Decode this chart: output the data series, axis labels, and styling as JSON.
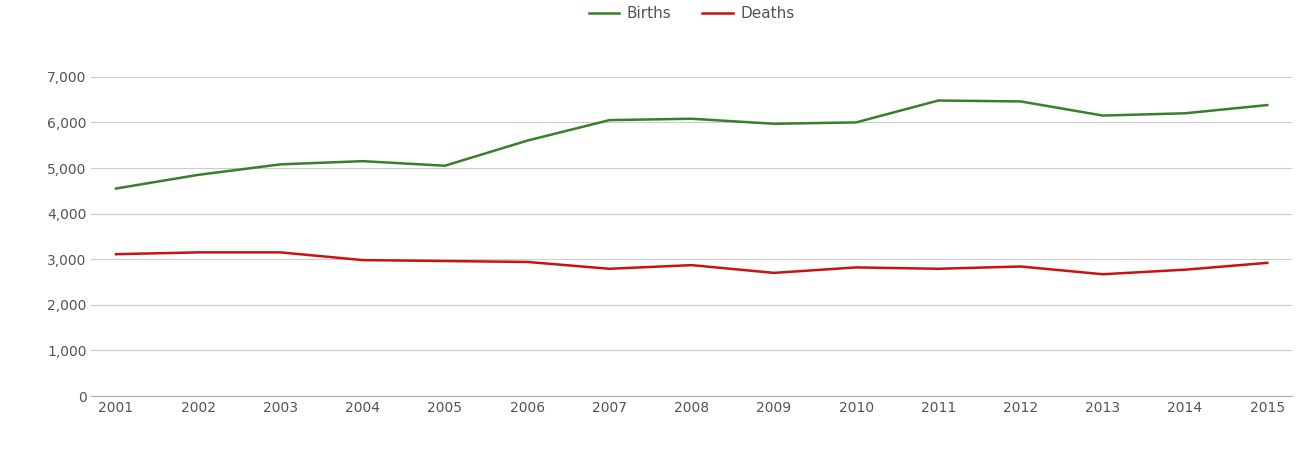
{
  "years": [
    2001,
    2002,
    2003,
    2004,
    2005,
    2006,
    2007,
    2008,
    2009,
    2010,
    2011,
    2012,
    2013,
    2014,
    2015
  ],
  "births": [
    4550,
    4850,
    5080,
    5150,
    5050,
    5600,
    6050,
    6080,
    5970,
    6000,
    6480,
    6460,
    6150,
    6200,
    6380
  ],
  "deaths": [
    3110,
    3150,
    3150,
    2980,
    2960,
    2940,
    2790,
    2870,
    2700,
    2820,
    2790,
    2840,
    2670,
    2770,
    2920
  ],
  "births_color": "#3a7d2c",
  "deaths_color": "#cc1111",
  "line_width": 1.8,
  "ylim": [
    0,
    7500
  ],
  "yticks": [
    0,
    1000,
    2000,
    3000,
    4000,
    5000,
    6000,
    7000
  ],
  "legend_labels": [
    "Births",
    "Deaths"
  ],
  "background_color": "#ffffff",
  "grid_color": "#cccccc",
  "tick_label_color": "#555555"
}
